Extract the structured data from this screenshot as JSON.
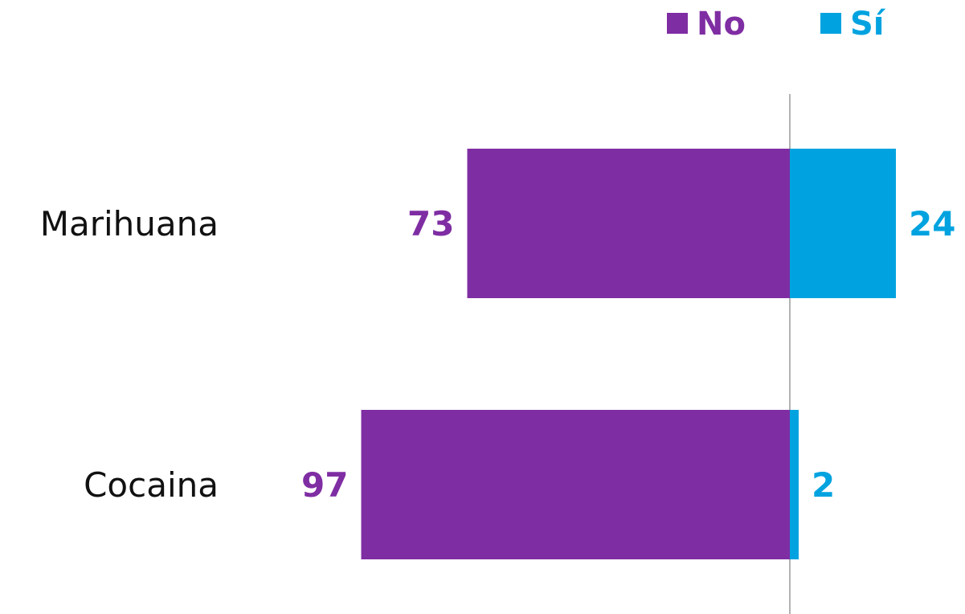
{
  "chart_data": {
    "type": "bar",
    "orientation": "horizontal-diverging",
    "categories": [
      "Marihuana",
      "Cocaina"
    ],
    "series": [
      {
        "name": "No",
        "values": [
          73,
          97
        ],
        "color": "#7f2da3",
        "direction": "left"
      },
      {
        "name": "Sí",
        "values": [
          24,
          2
        ],
        "color": "#00a3e0",
        "direction": "right"
      }
    ],
    "legend": {
      "position": "top-right"
    },
    "grid": false,
    "baseline": 0
  }
}
